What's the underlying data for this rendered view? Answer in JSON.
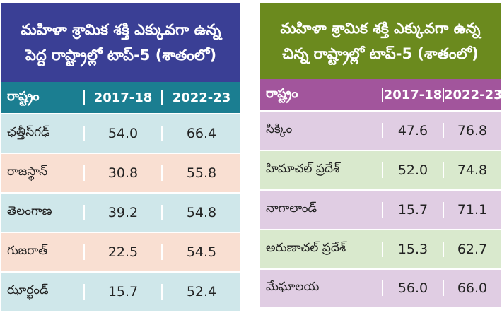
{
  "left": {
    "title_line1": "మహిళా శ్రామిక శక్తి ఎక్కువగా ఉన్న",
    "title_line2": "పెద్ద రాష్ట్రాల్లో టాప్‌-5 (శాతంలో)",
    "header": {
      "state": "రాష్ట్రం",
      "y1": "2017-18",
      "y2": "2022-23"
    },
    "rows": [
      {
        "state": "ఛత్తీస్‌గఢ్‌",
        "y1": "54.0",
        "y2": "66.4"
      },
      {
        "state": "రాజస్థాన్‌",
        "y1": "30.8",
        "y2": "55.8"
      },
      {
        "state": "తెలంగాణ",
        "y1": "39.2",
        "y2": "54.8"
      },
      {
        "state": "గుజరాత్‌",
        "y1": "22.5",
        "y2": "54.5"
      },
      {
        "state": "ఝార్ఖండ్‌",
        "y1": "15.7",
        "y2": "52.4"
      }
    ]
  },
  "right": {
    "title_line1": "మహిళా శ్రామిక శక్తి ఎక్కువగా ఉన్న",
    "title_line2": "చిన్న రాష్ట్రాల్లో టాప్‌-5 (శాతంలో)",
    "header": {
      "state": "రాష్ట్రం",
      "y1": "2017-18",
      "y2": "2022-23"
    },
    "rows": [
      {
        "state": "సిక్కిం",
        "y1": "47.6",
        "y2": "76.8"
      },
      {
        "state": "హిమాచల్‌ ప్రదేశ్‌",
        "y1": "52.0",
        "y2": "74.8"
      },
      {
        "state": "నాగాలాండ్‌",
        "y1": "15.7",
        "y2": "71.1"
      },
      {
        "state": "అరుణాచల్‌ ప్రదేశ్‌",
        "y1": "15.3",
        "y2": "62.7"
      },
      {
        "state": "మేఘాలయ",
        "y1": "56.0",
        "y2": "66.0"
      }
    ]
  }
}
